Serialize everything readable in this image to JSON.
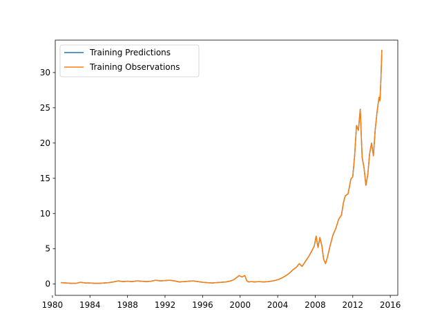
{
  "chart_data": {
    "type": "line",
    "xlim": [
      1980.3,
      2016.8
    ],
    "ylim": [
      -1.6,
      34.6
    ],
    "grid": false,
    "legend": {
      "position": "upper-left",
      "entries": [
        "Training Predictions",
        "Training Observations"
      ]
    },
    "x_ticks": [
      1980,
      1984,
      1988,
      1992,
      1996,
      2000,
      2004,
      2008,
      2012,
      2016
    ],
    "y_ticks": [
      0,
      5,
      10,
      15,
      20,
      25,
      30
    ],
    "series": [
      {
        "name": "Training Predictions",
        "color": "#1f77b4",
        "x": [
          1980.9,
          1981.5,
          1982.0,
          1982.5,
          1983.0,
          1983.5,
          1984.0,
          1984.5,
          1985.0,
          1985.5,
          1986.0,
          1986.5,
          1987.0,
          1987.5,
          1988.0,
          1988.5,
          1989.0,
          1989.5,
          1990.0,
          1990.5,
          1991.0,
          1991.5,
          1992.0,
          1992.5,
          1993.0,
          1993.5,
          1994.0,
          1994.5,
          1995.0,
          1995.5,
          1996.0,
          1996.5,
          1997.0,
          1997.5,
          1998.0,
          1998.5,
          1999.0,
          1999.3,
          1999.6,
          1999.9,
          2000.2,
          2000.5,
          2000.7,
          2000.9,
          2001.2,
          2001.5,
          2002.0,
          2002.5,
          2003.0,
          2003.5,
          2004.0,
          2004.5,
          2005.0,
          2005.3,
          2005.6,
          2006.0,
          2006.3,
          2006.6,
          2007.0,
          2007.3,
          2007.6,
          2007.9,
          2008.1,
          2008.3,
          2008.5,
          2008.7,
          2008.9,
          2009.1,
          2009.3,
          2009.6,
          2009.9,
          2010.2,
          2010.5,
          2010.8,
          2011.0,
          2011.2,
          2011.5,
          2011.8,
          2012.0,
          2012.2,
          2012.4,
          2012.6,
          2012.8,
          2013.0,
          2013.2,
          2013.4,
          2013.6,
          2013.8,
          2014.0,
          2014.2,
          2014.4,
          2014.6,
          2014.8,
          2014.9,
          2015.0,
          2015.1
        ],
        "values": [
          0.2,
          0.15,
          0.1,
          0.1,
          0.25,
          0.15,
          0.15,
          0.1,
          0.1,
          0.15,
          0.2,
          0.3,
          0.45,
          0.35,
          0.4,
          0.35,
          0.45,
          0.4,
          0.35,
          0.4,
          0.55,
          0.45,
          0.5,
          0.55,
          0.45,
          0.3,
          0.35,
          0.4,
          0.45,
          0.35,
          0.25,
          0.2,
          0.15,
          0.2,
          0.25,
          0.3,
          0.45,
          0.6,
          0.9,
          1.2,
          1.0,
          1.2,
          0.5,
          0.3,
          0.35,
          0.3,
          0.35,
          0.3,
          0.35,
          0.45,
          0.6,
          0.9,
          1.3,
          1.6,
          2.0,
          2.4,
          2.9,
          2.5,
          3.3,
          3.9,
          4.6,
          5.4,
          6.8,
          5.2,
          6.6,
          5.5,
          3.5,
          2.9,
          3.8,
          5.5,
          7.0,
          7.9,
          9.2,
          9.8,
          11.5,
          12.5,
          12.8,
          14.9,
          15.2,
          18.2,
          22.5,
          21.8,
          24.8,
          18.0,
          16.5,
          14.0,
          15.5,
          18.5,
          20.0,
          18.2,
          22.0,
          24.5,
          26.5,
          26.0,
          29.0,
          33.2
        ]
      },
      {
        "name": "Training Observations",
        "color": "#ff7f0e",
        "x": [
          1980.9,
          1981.5,
          1982.0,
          1982.5,
          1983.0,
          1983.5,
          1984.0,
          1984.5,
          1985.0,
          1985.5,
          1986.0,
          1986.5,
          1987.0,
          1987.5,
          1988.0,
          1988.5,
          1989.0,
          1989.5,
          1990.0,
          1990.5,
          1991.0,
          1991.5,
          1992.0,
          1992.5,
          1993.0,
          1993.5,
          1994.0,
          1994.5,
          1995.0,
          1995.5,
          1996.0,
          1996.5,
          1997.0,
          1997.5,
          1998.0,
          1998.5,
          1999.0,
          1999.3,
          1999.6,
          1999.9,
          2000.2,
          2000.5,
          2000.7,
          2000.9,
          2001.2,
          2001.5,
          2002.0,
          2002.5,
          2003.0,
          2003.5,
          2004.0,
          2004.5,
          2005.0,
          2005.3,
          2005.6,
          2006.0,
          2006.3,
          2006.6,
          2007.0,
          2007.3,
          2007.6,
          2007.9,
          2008.1,
          2008.3,
          2008.5,
          2008.7,
          2008.9,
          2009.1,
          2009.3,
          2009.6,
          2009.9,
          2010.2,
          2010.5,
          2010.8,
          2011.0,
          2011.2,
          2011.5,
          2011.8,
          2012.0,
          2012.2,
          2012.4,
          2012.6,
          2012.8,
          2013.0,
          2013.2,
          2013.4,
          2013.6,
          2013.8,
          2014.0,
          2014.2,
          2014.4,
          2014.6,
          2014.8,
          2014.9,
          2015.0,
          2015.1
        ],
        "values": [
          0.2,
          0.15,
          0.1,
          0.1,
          0.25,
          0.15,
          0.15,
          0.1,
          0.1,
          0.15,
          0.2,
          0.3,
          0.45,
          0.35,
          0.4,
          0.35,
          0.45,
          0.4,
          0.35,
          0.4,
          0.55,
          0.45,
          0.5,
          0.55,
          0.45,
          0.3,
          0.35,
          0.4,
          0.45,
          0.35,
          0.25,
          0.2,
          0.15,
          0.2,
          0.25,
          0.3,
          0.45,
          0.6,
          0.9,
          1.2,
          1.0,
          1.2,
          0.5,
          0.3,
          0.35,
          0.3,
          0.35,
          0.3,
          0.35,
          0.45,
          0.6,
          0.9,
          1.3,
          1.6,
          2.0,
          2.4,
          2.9,
          2.5,
          3.3,
          3.9,
          4.6,
          5.4,
          6.8,
          5.2,
          6.6,
          5.5,
          3.5,
          2.9,
          3.8,
          5.5,
          7.0,
          7.9,
          9.2,
          9.8,
          11.5,
          12.5,
          12.8,
          14.9,
          15.2,
          18.2,
          22.5,
          21.8,
          24.8,
          18.0,
          16.5,
          14.0,
          15.5,
          18.5,
          20.0,
          18.2,
          22.0,
          24.5,
          26.5,
          26.0,
          29.0,
          33.2
        ]
      }
    ]
  }
}
